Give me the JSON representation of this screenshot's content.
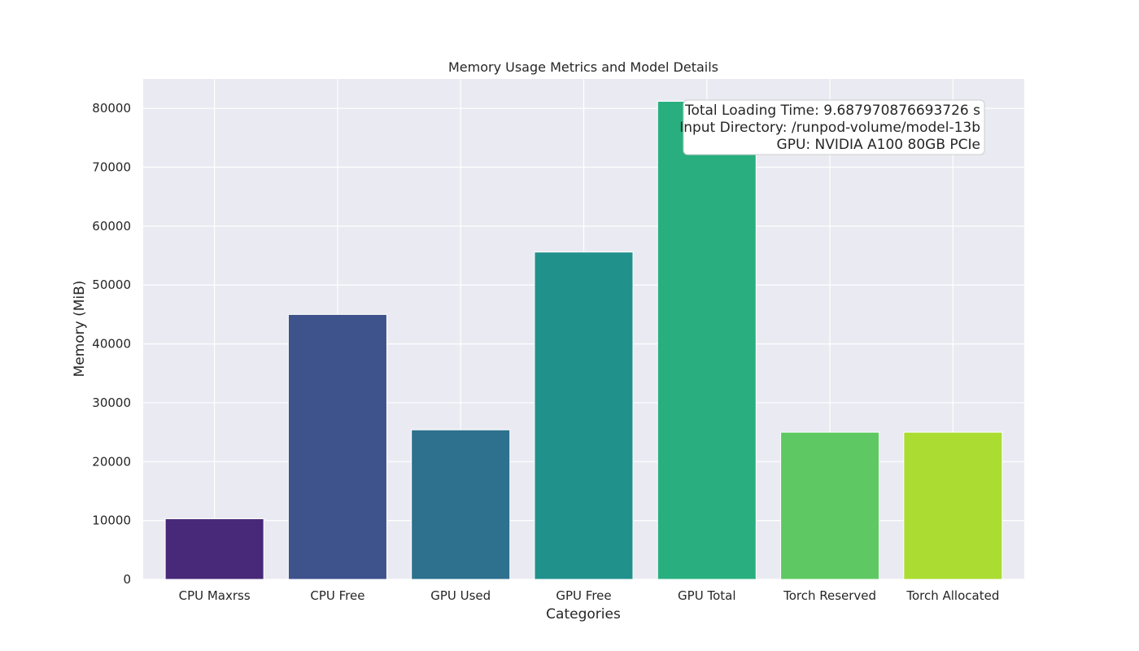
{
  "chart_data": {
    "type": "bar",
    "title": "Memory Usage Metrics and Model Details",
    "xlabel": "Categories",
    "ylabel": "Memory (MiB)",
    "categories": [
      "CPU Maxrss",
      "CPU Free",
      "GPU Used",
      "GPU Free",
      "GPU Total",
      "Torch Reserved",
      "Torch Allocated"
    ],
    "values": [
      10300,
      45000,
      25400,
      55600,
      81200,
      25000,
      25000
    ],
    "colors": [
      "#482878",
      "#3e528b",
      "#2d718e",
      "#21918c",
      "#29af7f",
      "#5ec962",
      "#aadc32"
    ],
    "ylim": [
      0,
      85000
    ],
    "yticks": [
      0,
      10000,
      20000,
      30000,
      40000,
      50000,
      60000,
      70000,
      80000
    ],
    "grid": true,
    "background": "#eaeaf2",
    "annotation": {
      "placement": "top-right",
      "lines": [
        "Total Loading Time: 9.687970876693726 s",
        "Input Directory: /runpod-volume/model-13b",
        "GPU: NVIDIA A100 80GB PCIe"
      ]
    }
  }
}
